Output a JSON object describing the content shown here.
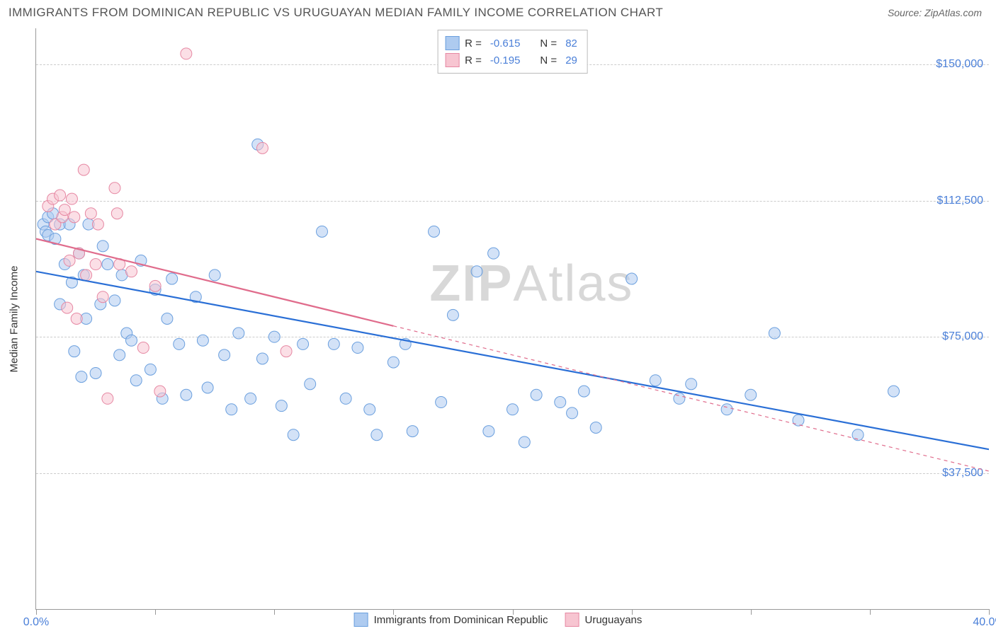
{
  "title": "IMMIGRANTS FROM DOMINICAN REPUBLIC VS URUGUAYAN MEDIAN FAMILY INCOME CORRELATION CHART",
  "source_prefix": "Source: ",
  "source": "ZipAtlas.com",
  "ylabel": "Median Family Income",
  "watermark_bold": "ZIP",
  "watermark_rest": "Atlas",
  "chart": {
    "type": "scatter",
    "background_color": "#ffffff",
    "grid_color": "#cccccc",
    "axis_color": "#999999",
    "tick_label_color": "#4a7fd8",
    "ylabel_color": "#333333",
    "xlim": [
      0,
      40
    ],
    "ylim": [
      0,
      160000
    ],
    "ytick_values": [
      37500,
      75000,
      112500,
      150000
    ],
    "ytick_labels": [
      "$37,500",
      "$75,000",
      "$112,500",
      "$150,000"
    ],
    "xtick_values": [
      0,
      5,
      10,
      15,
      20,
      25,
      30,
      35,
      40
    ],
    "xtick_start_label": "0.0%",
    "xtick_end_label": "40.0%",
    "marker_radius": 8,
    "marker_opacity": 0.55,
    "line_width_solid": 2.2,
    "line_width_dashed": 1.2,
    "dash_pattern": "5,5"
  },
  "series": [
    {
      "key": "dominican",
      "label": "Immigrants from Dominican Republic",
      "color_fill": "#aecbf0",
      "color_stroke": "#6a9fde",
      "r": "-0.615",
      "n": "82",
      "trend_solid": {
        "x1": 0,
        "y1": 93000,
        "x2": 40,
        "y2": 44000
      },
      "solid_extent_x": 40,
      "line_color": "#2a6fd6",
      "points": [
        [
          0.3,
          106000
        ],
        [
          0.4,
          104000
        ],
        [
          0.5,
          108000
        ],
        [
          0.5,
          103000
        ],
        [
          0.7,
          109000
        ],
        [
          0.8,
          102000
        ],
        [
          1.0,
          106000
        ],
        [
          1.0,
          84000
        ],
        [
          1.2,
          95000
        ],
        [
          1.4,
          106000
        ],
        [
          1.5,
          90000
        ],
        [
          1.6,
          71000
        ],
        [
          1.8,
          98000
        ],
        [
          1.9,
          64000
        ],
        [
          2.0,
          92000
        ],
        [
          2.1,
          80000
        ],
        [
          2.2,
          106000
        ],
        [
          2.5,
          65000
        ],
        [
          2.7,
          84000
        ],
        [
          2.8,
          100000
        ],
        [
          3.0,
          95000
        ],
        [
          3.3,
          85000
        ],
        [
          3.5,
          70000
        ],
        [
          3.6,
          92000
        ],
        [
          3.8,
          76000
        ],
        [
          4.0,
          74000
        ],
        [
          4.2,
          63000
        ],
        [
          4.4,
          96000
        ],
        [
          4.8,
          66000
        ],
        [
          5.0,
          88000
        ],
        [
          5.3,
          58000
        ],
        [
          5.5,
          80000
        ],
        [
          5.7,
          91000
        ],
        [
          6.0,
          73000
        ],
        [
          6.3,
          59000
        ],
        [
          6.7,
          86000
        ],
        [
          7.0,
          74000
        ],
        [
          7.2,
          61000
        ],
        [
          7.5,
          92000
        ],
        [
          7.9,
          70000
        ],
        [
          8.2,
          55000
        ],
        [
          8.5,
          76000
        ],
        [
          9.0,
          58000
        ],
        [
          9.3,
          128000
        ],
        [
          9.5,
          69000
        ],
        [
          10.0,
          75000
        ],
        [
          10.3,
          56000
        ],
        [
          10.8,
          48000
        ],
        [
          11.2,
          73000
        ],
        [
          11.5,
          62000
        ],
        [
          12.0,
          104000
        ],
        [
          12.5,
          73000
        ],
        [
          13.0,
          58000
        ],
        [
          13.5,
          72000
        ],
        [
          14.0,
          55000
        ],
        [
          14.3,
          48000
        ],
        [
          15.0,
          68000
        ],
        [
          15.5,
          73000
        ],
        [
          15.8,
          49000
        ],
        [
          16.7,
          104000
        ],
        [
          17.0,
          57000
        ],
        [
          17.5,
          81000
        ],
        [
          18.5,
          93000
        ],
        [
          19.0,
          49000
        ],
        [
          19.2,
          98000
        ],
        [
          20.0,
          55000
        ],
        [
          20.5,
          46000
        ],
        [
          21.0,
          59000
        ],
        [
          22.0,
          57000
        ],
        [
          22.5,
          54000
        ],
        [
          23.0,
          60000
        ],
        [
          23.5,
          50000
        ],
        [
          25.0,
          91000
        ],
        [
          26.0,
          63000
        ],
        [
          27.0,
          58000
        ],
        [
          27.5,
          62000
        ],
        [
          29.0,
          55000
        ],
        [
          30.0,
          59000
        ],
        [
          31.0,
          76000
        ],
        [
          32.0,
          52000
        ],
        [
          34.5,
          48000
        ],
        [
          36.0,
          60000
        ]
      ]
    },
    {
      "key": "uruguayan",
      "label": "Uruguayans",
      "color_fill": "#f7c5d1",
      "color_stroke": "#e688a3",
      "r": "-0.195",
      "n": "29",
      "trend_solid": {
        "x1": 0,
        "y1": 102000,
        "x2": 40,
        "y2": 38000
      },
      "solid_extent_x": 15,
      "line_color": "#e06c8c",
      "points": [
        [
          0.5,
          111000
        ],
        [
          0.7,
          113000
        ],
        [
          0.8,
          106000
        ],
        [
          1.0,
          114000
        ],
        [
          1.1,
          108000
        ],
        [
          1.2,
          110000
        ],
        [
          1.3,
          83000
        ],
        [
          1.4,
          96000
        ],
        [
          1.5,
          113000
        ],
        [
          1.6,
          108000
        ],
        [
          1.7,
          80000
        ],
        [
          1.8,
          98000
        ],
        [
          2.0,
          121000
        ],
        [
          2.1,
          92000
        ],
        [
          2.3,
          109000
        ],
        [
          2.5,
          95000
        ],
        [
          2.6,
          106000
        ],
        [
          2.8,
          86000
        ],
        [
          3.0,
          58000
        ],
        [
          3.3,
          116000
        ],
        [
          3.4,
          109000
        ],
        [
          3.5,
          95000
        ],
        [
          4.0,
          93000
        ],
        [
          4.5,
          72000
        ],
        [
          5.0,
          89000
        ],
        [
          5.2,
          60000
        ],
        [
          6.3,
          153000
        ],
        [
          9.5,
          127000
        ],
        [
          10.5,
          71000
        ]
      ]
    }
  ],
  "top_legend": {
    "r_label": "R =",
    "n_label": "N ="
  },
  "bottom_legend_items": [
    {
      "swatch_fill": "#aecbf0",
      "swatch_stroke": "#6a9fde",
      "label_key": "series.0.label"
    },
    {
      "swatch_fill": "#f7c5d1",
      "swatch_stroke": "#e688a3",
      "label_key": "series.1.label"
    }
  ]
}
